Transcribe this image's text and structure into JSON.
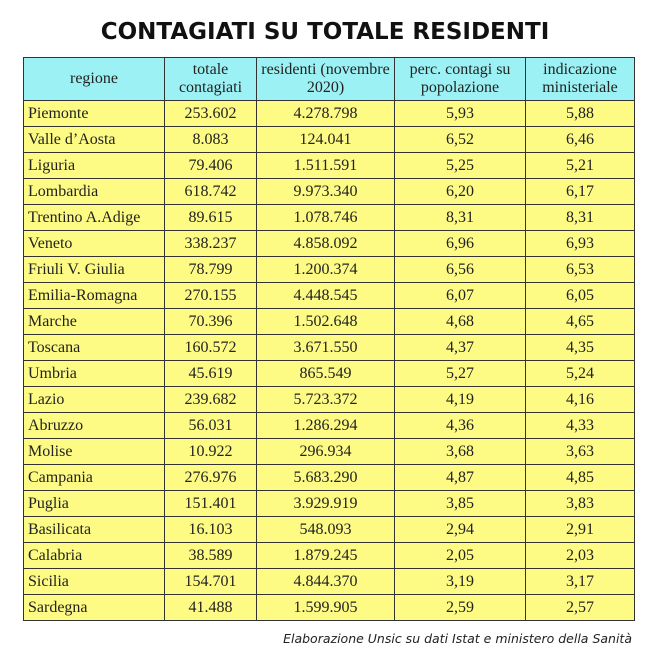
{
  "title": "CONTAGIATI SU TOTALE RESIDENTI",
  "table": {
    "headers": [
      "regione",
      "totale contagiati",
      "residenti (novembre 2020)",
      "perc. contagi su popolazione",
      "indicazione ministeriale"
    ],
    "header_colors": {
      "header_bg": "#9cf1f4",
      "row_bg": "#fdfb84"
    },
    "rows": [
      [
        "Piemonte",
        "253.602",
        "4.278.798",
        "5,93",
        "5,88"
      ],
      [
        "Valle d’Aosta",
        "8.083",
        "124.041",
        "6,52",
        "6,46"
      ],
      [
        "Liguria",
        "79.406",
        "1.511.591",
        "5,25",
        "5,21"
      ],
      [
        "Lombardia",
        "618.742",
        "9.973.340",
        "6,20",
        "6,17"
      ],
      [
        "Trentino A.Adige",
        "89.615",
        "1.078.746",
        "8,31",
        "8,31"
      ],
      [
        "Veneto",
        "338.237",
        "4.858.092",
        "6,96",
        "6,93"
      ],
      [
        "Friuli V. Giulia",
        "78.799",
        "1.200.374",
        "6,56",
        "6,53"
      ],
      [
        "Emilia-Romagna",
        "270.155",
        "4.448.545",
        "6,07",
        "6,05"
      ],
      [
        "Marche",
        "70.396",
        "1.502.648",
        "4,68",
        "4,65"
      ],
      [
        "Toscana",
        "160.572",
        "3.671.550",
        "4,37",
        "4,35"
      ],
      [
        "Umbria",
        "45.619",
        "865.549",
        "5,27",
        "5,24"
      ],
      [
        "Lazio",
        "239.682",
        "5.723.372",
        "4,19",
        "4,16"
      ],
      [
        "Abruzzo",
        "56.031",
        "1.286.294",
        "4,36",
        "4,33"
      ],
      [
        "Molise",
        "10.922",
        "296.934",
        "3,68",
        "3,63"
      ],
      [
        "Campania",
        "276.976",
        "5.683.290",
        "4,87",
        "4,85"
      ],
      [
        "Puglia",
        "151.401",
        "3.929.919",
        "3,85",
        "3,83"
      ],
      [
        "Basilicata",
        "16.103",
        "548.093",
        "2,94",
        "2,91"
      ],
      [
        "Calabria",
        "38.589",
        "1.879.245",
        "2,05",
        "2,03"
      ],
      [
        "Sicilia",
        "154.701",
        "4.844.370",
        "3,19",
        "3,17"
      ],
      [
        "Sardegna",
        "41.488",
        "1.599.905",
        "2,59",
        "2,57"
      ]
    ]
  },
  "caption": "Elaborazione Unsic su dati Istat e ministero della Sanità"
}
